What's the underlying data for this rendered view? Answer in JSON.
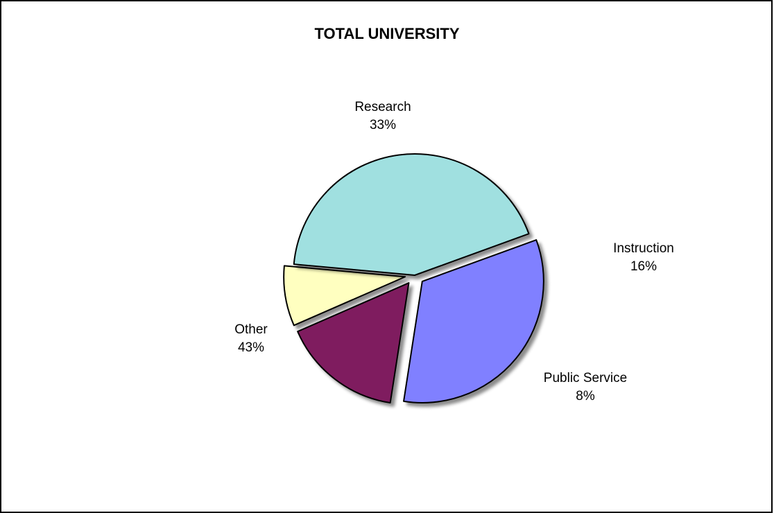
{
  "chart_data": {
    "type": "pie",
    "title": "TOTAL UNIVERSITY",
    "slices": [
      {
        "label": "Research",
        "percent_text": "33%",
        "value": 33,
        "color": "#8080FF",
        "exploded": true
      },
      {
        "label": "Instruction",
        "percent_text": "16%",
        "value": 16,
        "color": "#7F1F5F",
        "exploded": true
      },
      {
        "label": "Public Service",
        "percent_text": "8%",
        "value": 8,
        "color": "#FFFFC0",
        "exploded": true
      },
      {
        "label": "Other",
        "percent_text": "43%",
        "value": 43,
        "color": "#A0E0E0",
        "exploded": false
      }
    ]
  }
}
